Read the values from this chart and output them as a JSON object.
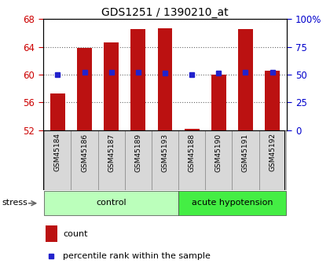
{
  "title": "GDS1251 / 1390210_at",
  "samples": [
    "GSM45184",
    "GSM45186",
    "GSM45187",
    "GSM45189",
    "GSM45193",
    "GSM45188",
    "GSM45190",
    "GSM45191",
    "GSM45192"
  ],
  "count_values": [
    57.3,
    63.8,
    64.6,
    66.5,
    66.7,
    52.2,
    60.0,
    66.5,
    60.5
  ],
  "percentile_values": [
    50,
    52,
    52,
    52,
    51,
    50,
    51,
    52,
    52
  ],
  "groups": [
    {
      "label": "control",
      "start": 0,
      "end": 5,
      "color": "#bbffbb"
    },
    {
      "label": "acute hypotension",
      "start": 5,
      "end": 9,
      "color": "#44ee44"
    }
  ],
  "ylim_left": [
    52,
    68
  ],
  "ylim_right": [
    0,
    100
  ],
  "yticks_left": [
    52,
    56,
    60,
    64,
    68
  ],
  "yticks_right": [
    0,
    25,
    50,
    75,
    100
  ],
  "bar_color": "#bb1111",
  "percentile_color": "#2222cc",
  "left_tick_color": "#cc0000",
  "right_tick_color": "#0000cc",
  "grid_color": "#666666",
  "bg_color": "#ffffff",
  "stress_label": "stress",
  "legend_count": "count",
  "legend_percentile": "percentile rank within the sample",
  "bar_width": 0.55
}
